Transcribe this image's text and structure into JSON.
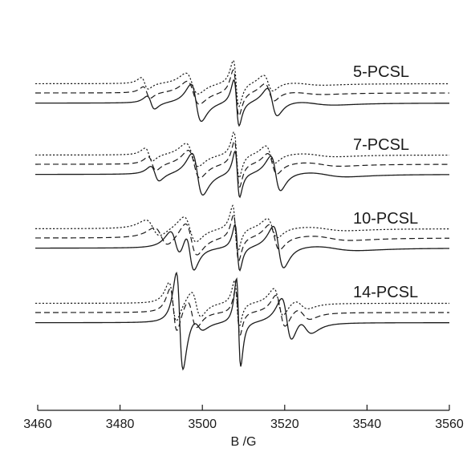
{
  "chart_data": {
    "type": "line",
    "xlabel": "B /G",
    "xlim": [
      3460,
      3560
    ],
    "x_ticks": [
      3460,
      3480,
      3500,
      3520,
      3540,
      3560
    ],
    "x_tick_labels": [
      "3460",
      "3480",
      "3500",
      "3520",
      "3540",
      "3560"
    ],
    "y_axis_shown": false,
    "grid": false,
    "legend": "none",
    "line_styles": [
      "dotted",
      "dashed",
      "solid"
    ],
    "line_color": "#1a1a1a",
    "groups": [
      {
        "label": "5-PCSL",
        "curves": [
          {
            "style": "dotted",
            "baseline": 1.05,
            "amp": 1.0,
            "components": [
              [
                3486,
                1.5,
                0.25
              ],
              [
                3497.5,
                2.6,
                0.45
              ],
              [
                3508.2,
                1.2,
                1.0
              ],
              [
                3516.0,
                2.0,
                0.35
              ],
              [
                3525,
                8,
                0.06
              ]
            ]
          },
          {
            "style": "dashed",
            "baseline": 0.0,
            "amp": 1.0,
            "components": [
              [
                3486.5,
                1.5,
                0.25
              ],
              [
                3497.8,
                2.6,
                0.5
              ],
              [
                3508.2,
                1.2,
                1.0
              ],
              [
                3516.3,
                2.0,
                0.38
              ],
              [
                3525,
                8,
                0.06
              ]
            ]
          },
          {
            "style": "solid",
            "baseline": -1.15,
            "amp": 1.0,
            "components": [
              [
                3487.5,
                1.6,
                0.28
              ],
              [
                3498.5,
                2.2,
                0.8
              ],
              [
                3508.3,
                1.1,
                1.0
              ],
              [
                3517.0,
                2.1,
                0.6
              ],
              [
                3527,
                9,
                0.08
              ]
            ]
          }
        ]
      },
      {
        "label": "7-PCSL",
        "curves": [
          {
            "style": "dotted",
            "baseline": 1.05,
            "amp": 1.0,
            "components": [
              [
                3487,
                1.6,
                0.28
              ],
              [
                3497.5,
                2.6,
                0.5
              ],
              [
                3508.3,
                1.1,
                1.0
              ],
              [
                3516.5,
                2.0,
                0.38
              ],
              [
                3528,
                8,
                0.07
              ]
            ]
          },
          {
            "style": "dashed",
            "baseline": 0.0,
            "amp": 1.0,
            "components": [
              [
                3487.8,
                1.7,
                0.3
              ],
              [
                3498.0,
                2.5,
                0.6
              ],
              [
                3508.4,
                1.1,
                1.0
              ],
              [
                3517.0,
                2.0,
                0.45
              ],
              [
                3529,
                8,
                0.08
              ]
            ]
          },
          {
            "style": "solid",
            "baseline": -1.15,
            "amp": 1.0,
            "components": [
              [
                3488.5,
                1.8,
                0.32
              ],
              [
                3498.8,
                2.3,
                0.9
              ],
              [
                3508.5,
                1.0,
                1.0
              ],
              [
                3517.8,
                2.1,
                0.75
              ],
              [
                3530,
                9,
                0.1
              ]
            ]
          }
        ]
      },
      {
        "label": "10-PCSL",
        "curves": [
          {
            "style": "dotted",
            "baseline": 1.05,
            "amp": 1.0,
            "components": [
              [
                3488,
                3.0,
                0.35
              ],
              [
                3497.0,
                2.6,
                0.55
              ],
              [
                3508.0,
                1.1,
                1.0
              ],
              [
                3517.0,
                2.2,
                0.42
              ],
              [
                3530,
                9,
                0.08
              ]
            ]
          },
          {
            "style": "dashed",
            "baseline": 0.0,
            "amp": 1.0,
            "components": [
              [
                3490,
                3.0,
                0.4
              ],
              [
                3497.3,
                2.5,
                0.7
              ],
              [
                3508.2,
                1.1,
                1.0
              ],
              [
                3517.5,
                2.2,
                0.55
              ],
              [
                3531,
                9,
                0.1
              ]
            ]
          },
          {
            "style": "solid",
            "baseline": -1.15,
            "amp": 1.0,
            "components": [
              [
                3493.5,
                2.3,
                0.6
              ],
              [
                3497.0,
                1.8,
                0.8
              ],
              [
                3508.5,
                1.0,
                1.0
              ],
              [
                3518.5,
                2.2,
                0.9
              ],
              [
                3532,
                10,
                0.1
              ]
            ]
          }
        ]
      },
      {
        "label": "14-PCSL",
        "curves": [
          {
            "style": "dotted",
            "baseline": 1.05,
            "amp": 1.0,
            "components": [
              [
                3492.8,
                1.6,
                0.85
              ],
              [
                3498.5,
                2.0,
                0.55
              ],
              [
                3508.4,
                1.0,
                1.0
              ],
              [
                3518.5,
                2.0,
                0.6
              ],
              [
                3524,
                3.0,
                0.2
              ]
            ]
          },
          {
            "style": "dashed",
            "baseline": 0.0,
            "amp": 1.0,
            "components": [
              [
                3493.0,
                1.5,
                0.95
              ],
              [
                3497.5,
                2.0,
                0.6
              ],
              [
                3508.6,
                0.95,
                1.0
              ],
              [
                3519.0,
                2.0,
                0.7
              ],
              [
                3524.5,
                3.0,
                0.25
              ]
            ]
          },
          {
            "style": "solid",
            "baseline": -1.15,
            "amp": 1.0,
            "components": [
              [
                3494.5,
                1.4,
                2.1
              ],
              [
                3499.0,
                2.2,
                0.25
              ],
              [
                3508.8,
                0.9,
                1.9
              ],
              [
                3520.5,
                2.2,
                0.95
              ],
              [
                3525.0,
                3.0,
                0.35
              ]
            ]
          }
        ]
      }
    ]
  }
}
